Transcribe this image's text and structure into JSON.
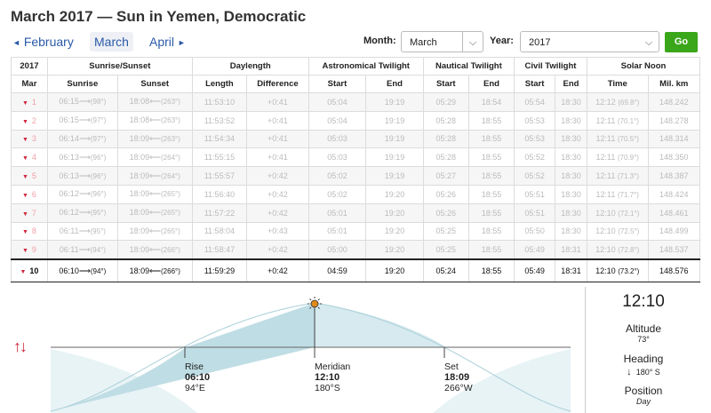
{
  "page_title": "March 2017 — Sun in Yemen, Democratic",
  "nav": {
    "prev": "February",
    "current": "March",
    "next": "April"
  },
  "form": {
    "month_label": "Month:",
    "month_value": "March",
    "year_label": "Year:",
    "year_value": "2017",
    "go_label": "Go"
  },
  "headers": {
    "year": "2017",
    "sunrise_sunset": "Sunrise/Sunset",
    "daylength": "Daylength",
    "astronomical": "Astronomical Twilight",
    "nautical": "Nautical Twilight",
    "civil": "Civil Twilight",
    "solar_noon": "Solar Noon",
    "month": "Mar",
    "sunrise": "Sunrise",
    "sunset": "Sunset",
    "length": "Length",
    "difference": "Difference",
    "start": "Start",
    "end": "End",
    "time": "Time",
    "mil_km": "Mil. km"
  },
  "rows": [
    {
      "day": "1",
      "sunrise": "06:15",
      "sr_az": "(98°)",
      "sunset": "18:08",
      "ss_az": "(263°)",
      "length": "11:53:10",
      "diff": "+0:41",
      "astro_s": "05:04",
      "astro_e": "19:19",
      "naut_s": "05:29",
      "naut_e": "18:54",
      "civ_s": "05:54",
      "civ_e": "18:30",
      "noon": "12:12",
      "noon_alt": "(69.8°)",
      "dist": "148.242"
    },
    {
      "day": "2",
      "sunrise": "06:15",
      "sr_az": "(97°)",
      "sunset": "18:08",
      "ss_az": "(263°)",
      "length": "11:53:52",
      "diff": "+0:41",
      "astro_s": "05:04",
      "astro_e": "19:19",
      "naut_s": "05:28",
      "naut_e": "18:55",
      "civ_s": "05:53",
      "civ_e": "18:30",
      "noon": "12:11",
      "noon_alt": "(70.1°)",
      "dist": "148.278"
    },
    {
      "day": "3",
      "sunrise": "06:14",
      "sr_az": "(97°)",
      "sunset": "18:09",
      "ss_az": "(263°)",
      "length": "11:54:34",
      "diff": "+0:41",
      "astro_s": "05:03",
      "astro_e": "19:19",
      "naut_s": "05:28",
      "naut_e": "18:55",
      "civ_s": "05:53",
      "civ_e": "18:30",
      "noon": "12:11",
      "noon_alt": "(70.5°)",
      "dist": "148.314"
    },
    {
      "day": "4",
      "sunrise": "06:13",
      "sr_az": "(96°)",
      "sunset": "18:09",
      "ss_az": "(264°)",
      "length": "11:55:15",
      "diff": "+0:41",
      "astro_s": "05:03",
      "astro_e": "19:19",
      "naut_s": "05:28",
      "naut_e": "18:55",
      "civ_s": "05:52",
      "civ_e": "18:30",
      "noon": "12:11",
      "noon_alt": "(70.9°)",
      "dist": "148.350"
    },
    {
      "day": "5",
      "sunrise": "06:13",
      "sr_az": "(96°)",
      "sunset": "18:09",
      "ss_az": "(264°)",
      "length": "11:55:57",
      "diff": "+0:42",
      "astro_s": "05:02",
      "astro_e": "19:19",
      "naut_s": "05:27",
      "naut_e": "18:55",
      "civ_s": "05:52",
      "civ_e": "18:30",
      "noon": "12:11",
      "noon_alt": "(71.3°)",
      "dist": "148.387"
    },
    {
      "day": "6",
      "sunrise": "06:12",
      "sr_az": "(96°)",
      "sunset": "18:09",
      "ss_az": "(265°)",
      "length": "11:56:40",
      "diff": "+0:42",
      "astro_s": "05:02",
      "astro_e": "19:20",
      "naut_s": "05:26",
      "naut_e": "18:55",
      "civ_s": "05:51",
      "civ_e": "18:30",
      "noon": "12:11",
      "noon_alt": "(71.7°)",
      "dist": "148.424"
    },
    {
      "day": "7",
      "sunrise": "06:12",
      "sr_az": "(95°)",
      "sunset": "18:09",
      "ss_az": "(265°)",
      "length": "11:57:22",
      "diff": "+0:42",
      "astro_s": "05:01",
      "astro_e": "19:20",
      "naut_s": "05:26",
      "naut_e": "18:55",
      "civ_s": "05:51",
      "civ_e": "18:30",
      "noon": "12:10",
      "noon_alt": "(72.1°)",
      "dist": "148.461"
    },
    {
      "day": "8",
      "sunrise": "06:11",
      "sr_az": "(95°)",
      "sunset": "18:09",
      "ss_az": "(265°)",
      "length": "11:58:04",
      "diff": "+0:43",
      "astro_s": "05:01",
      "astro_e": "19:20",
      "naut_s": "05:25",
      "naut_e": "18:55",
      "civ_s": "05:50",
      "civ_e": "18:30",
      "noon": "12:10",
      "noon_alt": "(72.5°)",
      "dist": "148.499"
    },
    {
      "day": "9",
      "sunrise": "06:11",
      "sr_az": "(94°)",
      "sunset": "18:09",
      "ss_az": "(266°)",
      "length": "11:58:47",
      "diff": "+0:42",
      "astro_s": "05:00",
      "astro_e": "19:20",
      "naut_s": "05:25",
      "naut_e": "18:55",
      "civ_s": "05:49",
      "civ_e": "18:31",
      "noon": "12:10",
      "noon_alt": "(72.8°)",
      "dist": "148.537"
    }
  ],
  "current_row": {
    "day": "10",
    "sunrise": "06:10",
    "sr_az": "(94°)",
    "sunset": "18:09",
    "ss_az": "(266°)",
    "length": "11:59:29",
    "diff": "+0:42",
    "astro_s": "04:59",
    "astro_e": "19:20",
    "naut_s": "05:24",
    "naut_e": "18:55",
    "civ_s": "05:49",
    "civ_e": "18:31",
    "noon": "12:10",
    "noon_alt": "(73.2°)",
    "dist": "148.576"
  },
  "graph": {
    "rise_label": "Rise",
    "rise_time": "06:10",
    "rise_dir": "94°E",
    "meridian_label": "Meridian",
    "meridian_time": "12:10",
    "meridian_dir": "180°S",
    "set_label": "Set",
    "set_time": "18:09",
    "set_dir": "266°W"
  },
  "side": {
    "time": "12:10",
    "altitude_label": "Altitude",
    "altitude_value": "73°",
    "heading_label": "Heading",
    "heading_arrow": "↓",
    "heading_value": "180° S",
    "position_label": "Position",
    "position_value": "Day"
  },
  "colors": {
    "accent": "#2a5aa8",
    "go": "#3aa61a",
    "marker": "#d0243c",
    "curve_fill": "#bfdde4"
  }
}
